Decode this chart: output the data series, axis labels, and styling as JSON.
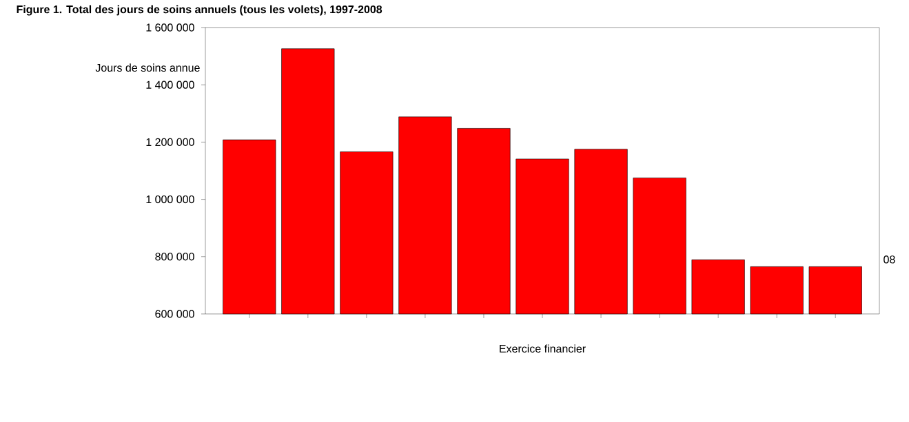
{
  "chart_data": {
    "type": "bar",
    "title": "Figure 1. Total des jours de soins annuels (tous les volets), 1997-2008",
    "xlabel": "Exercice financier",
    "ylabel": "Jours de soins annue",
    "categories": [
      null,
      null,
      null,
      null,
      null,
      null,
      null,
      null,
      null,
      null,
      null
    ],
    "values": [
      1208000,
      1526000,
      1166000,
      1288000,
      1248000,
      1141000,
      1175000,
      1075000,
      789000,
      765000,
      765000
    ],
    "color": "#ff0000",
    "ylim": [
      600000,
      1600000
    ],
    "yticks": [
      {
        "value": 600000,
        "label": "600 000"
      },
      {
        "value": 800000,
        "label": "800 000"
      },
      {
        "value": 1000000,
        "label": "1 000 000"
      },
      {
        "value": 1200000,
        "label": "1 200 000"
      },
      {
        "value": 1400000,
        "label": "1 400 000"
      },
      {
        "value": 1600000,
        "label": "1 600 000"
      }
    ],
    "annotations": [
      "08"
    ]
  }
}
